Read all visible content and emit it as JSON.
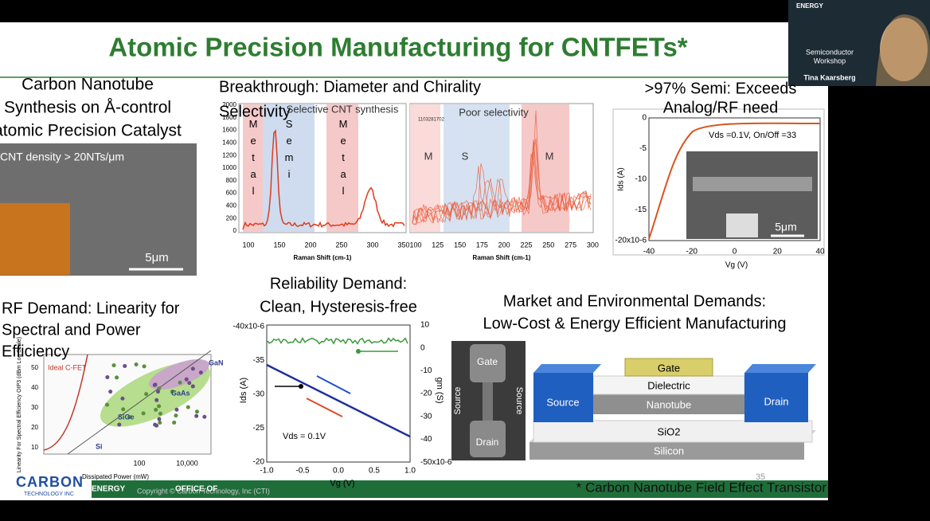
{
  "title": "Atomic Precision Manufacturing for CNTFETs*",
  "video": {
    "logo": "ENERGY",
    "event": [
      "Semiconductor",
      "Workshop"
    ],
    "speaker": "Tina Kaarsberg"
  },
  "synthesis": {
    "heading": [
      "Carbon Nanotube",
      "Synthesis on Å-control",
      "atomic Precision Catalyst"
    ],
    "image_label": "CNT density > 20NTs/μm",
    "scale": "5μm"
  },
  "breakthrough": {
    "heading": [
      "Breakthrough: Diameter and Chirality",
      "Selectivity"
    ],
    "chart_selective": {
      "title": "Selective CNT synthesis",
      "regions": [
        "Metal",
        "Semi",
        "Metal"
      ],
      "yticks": [
        "2000",
        "1800",
        "1600",
        "1400",
        "1200",
        "1000",
        "800",
        "600",
        "400",
        "200",
        "0"
      ],
      "xticks": [
        "100",
        "150",
        "200",
        "250",
        "300",
        "350"
      ],
      "xlabel": "Raman Shift (cm-1)"
    },
    "chart_poor": {
      "title": "Poor selectivity",
      "sample": "1103281702",
      "regions": [
        "M",
        "S",
        "M"
      ],
      "xticks": [
        "100",
        "125",
        "150",
        "175",
        "200",
        "225",
        "250",
        "275",
        "300"
      ],
      "xlabel": "Raman Shift (cm-1)"
    }
  },
  "semi": {
    "heading": [
      ">97% Semi: Exceeds",
      "Analog/RF need"
    ],
    "annotation": "Vds =0.1V, On/Off =33",
    "ylabel": "Ids (A)",
    "xlabel": "Vg (V)",
    "yticks": [
      "0",
      "-5",
      "-10",
      "-15",
      "-20x10-6"
    ],
    "xticks": [
      "-40",
      "-20",
      "0",
      "20",
      "40"
    ],
    "scale": "5μm"
  },
  "rf": {
    "heading": [
      "RF Demand: Linearity for",
      "Spectral and Power",
      "Efficiency"
    ],
    "labels": [
      "Ideal C-FET",
      "GaN",
      "GaAs",
      "SiGe",
      "Si"
    ],
    "ylabel": "Linearity For Spectral Efficiency OIP3 (dBm Log Scale)",
    "yticks": [
      "50",
      "40",
      "30",
      "20",
      "10"
    ],
    "xticks": [
      "100",
      "10,000"
    ],
    "xlabel": "Dissipated Power (mW)"
  },
  "reliability": {
    "heading": [
      "Reliability Demand:",
      "Clean, Hysteresis-free"
    ],
    "left_ticks": [
      "-40x10-6",
      "-35",
      "-30",
      "-25",
      "-20"
    ],
    "right_ticks": [
      "10",
      "0",
      "-10",
      "-20",
      "-30",
      "-40",
      "-50x10-6"
    ],
    "xticks": [
      "-1.0",
      "-0.5",
      "0.0",
      "0.5",
      "1.0"
    ],
    "ylabel": "Ids (A)",
    "y2label": "gm (S)",
    "xlabel": "Vg (V)",
    "annotation": "Vds = 0.1V"
  },
  "market": {
    "heading": [
      "Market and Environmental Demands:",
      "Low-Cost & Energy Efficient Manufacturing"
    ],
    "device_labels": [
      "Gate",
      "Drain",
      "Source",
      "Source"
    ],
    "stack_labels": {
      "gate": "Gate",
      "dielectric": "Dielectric",
      "nanotube": "Nanotube",
      "source": "Source",
      "drain": "Drain",
      "sio2": "SiO2",
      "silicon": "Silicon"
    }
  },
  "footer": {
    "logo": "CARBON",
    "logo_sub": "TECHNOLOGY INC",
    "energy": "ENERGY",
    "office": "OFFICE OF",
    "copyright": "Copyright © Carbon Technology, Inc (CTI)",
    "page": "35",
    "footnote": "* Carbon Nanotube Field Effect Transistor"
  }
}
